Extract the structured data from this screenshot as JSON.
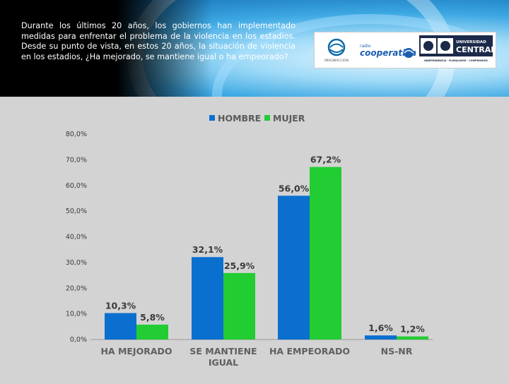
{
  "question": "Durante los últimos 20 años, los gobiernos han implementado medidas para enfrentar el problema de la violencia en los estadios. Desde su punto de vista, en estos 20 años, la situación de violencia en los estadios, ¿Ha mejorado, se mantiene igual o ha empeorado?",
  "logos": {
    "ine_text": "IMAGINACCION",
    "cooperativa_top": "radio",
    "cooperativa_name": "cooperativa",
    "universidad_label": "UNIVERSIDAD",
    "universidad_name": "CENTRAL",
    "universidad_motto": "INDEPENDENCIA · PLURALISMO · COMPROMISO"
  },
  "chart_data": {
    "type": "bar",
    "categories": [
      "HA MEJORADO",
      "SE MANTIENE IGUAL",
      "HA EMPEORADO",
      "NS-NR"
    ],
    "category_lines": [
      [
        "HA MEJORADO"
      ],
      [
        "SE MANTIENE",
        "IGUAL"
      ],
      [
        "HA EMPEORADO"
      ],
      [
        "NS-NR"
      ]
    ],
    "series": [
      {
        "name": "HOMBRE",
        "values": [
          10.3,
          32.1,
          56.0,
          1.6
        ],
        "labels": [
          "10,3%",
          "32,1%",
          "56,0%",
          "1,6%"
        ],
        "color": "#0b6fcf"
      },
      {
        "name": "MUJER",
        "values": [
          5.8,
          25.9,
          67.2,
          1.2
        ],
        "labels": [
          "5,8%",
          "25,9%",
          "67,2%",
          "1,2%"
        ],
        "color": "#22cc33"
      }
    ],
    "ylim": [
      0,
      80
    ],
    "yticks": [
      0,
      10,
      20,
      30,
      40,
      50,
      60,
      70,
      80
    ],
    "ytick_labels": [
      "0,0%",
      "10,0%",
      "20,0%",
      "30,0%",
      "40,0%",
      "50,0%",
      "60,0%",
      "70,0%",
      "80,0%"
    ],
    "legend_position": "top-center",
    "grid": false
  }
}
